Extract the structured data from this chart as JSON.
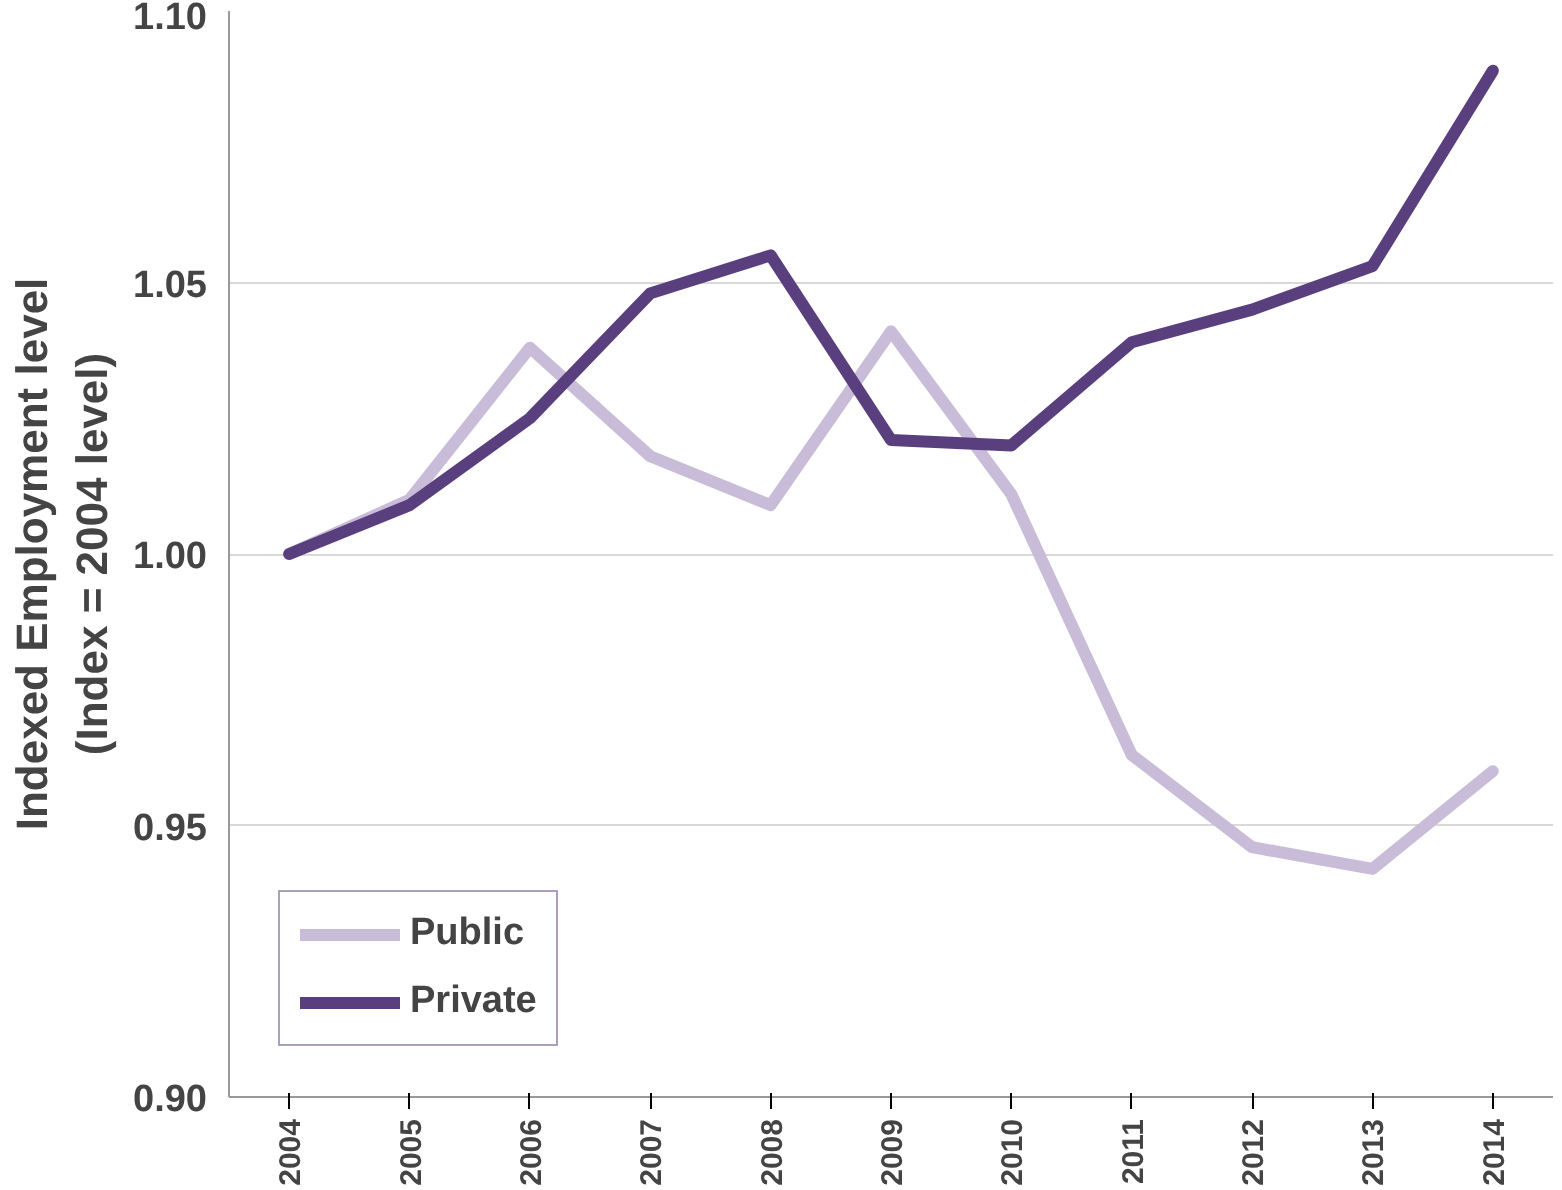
{
  "chart_data": {
    "type": "line",
    "ylabel": "Indexed Employment level\n(Index = 2004 level)",
    "categories": [
      "2004",
      "2005",
      "2006",
      "2007",
      "2008",
      "2009",
      "2010",
      "2011",
      "2012",
      "2013",
      "2014"
    ],
    "series": [
      {
        "name": "Public",
        "color": "#c8bcd9",
        "values": [
          1.0,
          1.01,
          1.038,
          1.018,
          1.009,
          1.041,
          1.011,
          0.963,
          0.946,
          0.942,
          0.96
        ]
      },
      {
        "name": "Private",
        "color": "#5a3f7e",
        "values": [
          1.0,
          1.009,
          1.025,
          1.048,
          1.055,
          1.021,
          1.02,
          1.039,
          1.045,
          1.053,
          1.089
        ]
      }
    ],
    "ylim": [
      0.9,
      1.1
    ],
    "yticks": [
      {
        "value": 0.9,
        "label": "0.90"
      },
      {
        "value": 0.95,
        "label": "0.95"
      },
      {
        "value": 1.0,
        "label": "1.00"
      },
      {
        "value": 1.05,
        "label": "1.05"
      },
      {
        "value": 1.1,
        "label": "1.10"
      }
    ],
    "grid": "y",
    "legend": "bottom left",
    "marker": "none",
    "line_style": "solid"
  }
}
